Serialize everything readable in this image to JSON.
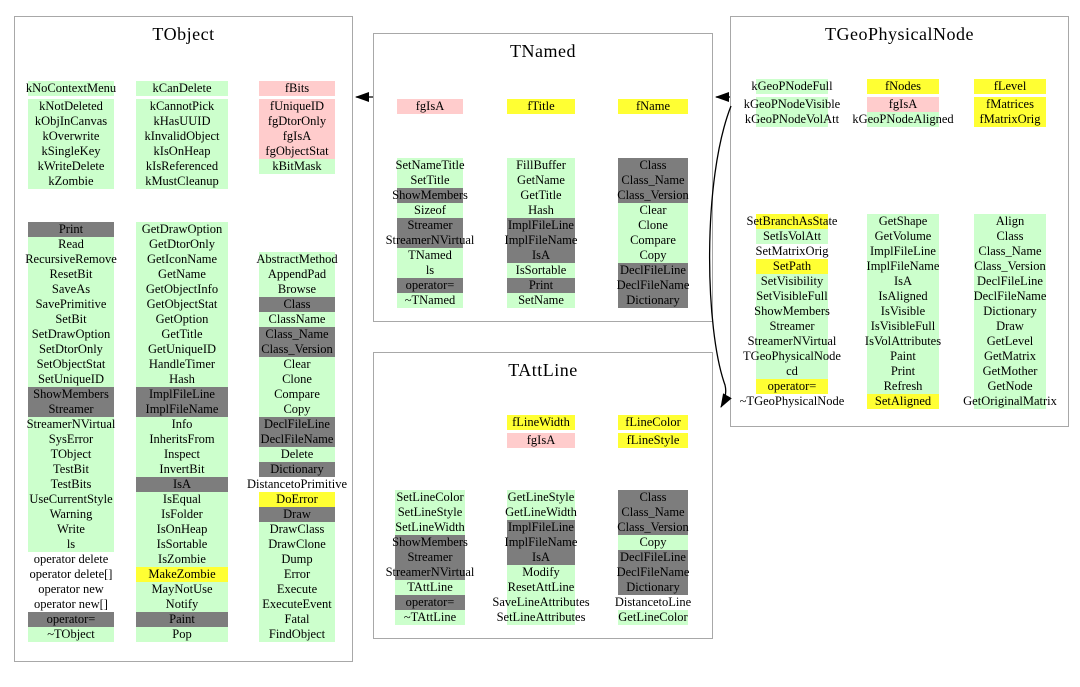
{
  "colors": {
    "green": "#ccffcc",
    "pink": "#ffcccc",
    "yellow": "#ffff33",
    "gray": "#7d7d7d",
    "none": "transparent"
  },
  "arrows": [
    {
      "from": "TNamed",
      "to": "TObject"
    },
    {
      "from": "TGeoPhysicalNode",
      "to": "TNamed"
    },
    {
      "from": "TGeoPhysicalNode",
      "to": "TAttLine"
    }
  ],
  "classes": {
    "tobject": {
      "title": "TObject",
      "members": [
        [
          {
            "t": "kNoContextMenu",
            "c": "green"
          },
          {
            "t": "kNotDeleted",
            "c": "green"
          },
          {
            "t": "kObjInCanvas",
            "c": "green"
          },
          {
            "t": "kOverwrite",
            "c": "green"
          },
          {
            "t": "kSingleKey",
            "c": "green"
          },
          {
            "t": "kWriteDelete",
            "c": "green"
          },
          {
            "t": "kZombie",
            "c": "green"
          }
        ],
        [
          {
            "t": "kCanDelete",
            "c": "green"
          },
          {
            "t": "kCannotPick",
            "c": "green"
          },
          {
            "t": "kHasUUID",
            "c": "green"
          },
          {
            "t": "kInvalidObject",
            "c": "green"
          },
          {
            "t": "kIsOnHeap",
            "c": "green"
          },
          {
            "t": "kIsReferenced",
            "c": "green"
          },
          {
            "t": "kMustCleanup",
            "c": "green"
          }
        ],
        [
          {
            "t": "fBits",
            "c": "pink"
          },
          {
            "t": "fUniqueID",
            "c": "pink"
          },
          {
            "t": "fgDtorOnly",
            "c": "pink"
          },
          {
            "t": "fgIsA",
            "c": "pink"
          },
          {
            "t": "fgObjectStat",
            "c": "pink"
          },
          {
            "t": "kBitMask",
            "c": "green"
          }
        ]
      ],
      "methods": [
        [
          {
            "t": "Print",
            "c": "gray"
          },
          {
            "t": "Read",
            "c": "green"
          },
          {
            "t": "RecursiveRemove",
            "c": "green"
          },
          {
            "t": "ResetBit",
            "c": "green"
          },
          {
            "t": "SaveAs",
            "c": "green"
          },
          {
            "t": "SavePrimitive",
            "c": "green"
          },
          {
            "t": "SetBit",
            "c": "green"
          },
          {
            "t": "SetDrawOption",
            "c": "green"
          },
          {
            "t": "SetDtorOnly",
            "c": "green"
          },
          {
            "t": "SetObjectStat",
            "c": "green"
          },
          {
            "t": "SetUniqueID",
            "c": "green"
          },
          {
            "t": "ShowMembers",
            "c": "gray"
          },
          {
            "t": "Streamer",
            "c": "gray"
          },
          {
            "t": "StreamerNVirtual",
            "c": "green"
          },
          {
            "t": "SysError",
            "c": "green"
          },
          {
            "t": "TObject",
            "c": "green"
          },
          {
            "t": "TestBit",
            "c": "green"
          },
          {
            "t": "TestBits",
            "c": "green"
          },
          {
            "t": "UseCurrentStyle",
            "c": "green"
          },
          {
            "t": "Warning",
            "c": "green"
          },
          {
            "t": "Write",
            "c": "green"
          },
          {
            "t": "ls",
            "c": "green"
          },
          {
            "t": "operator delete",
            "c": "none"
          },
          {
            "t": "operator delete[]",
            "c": "none"
          },
          {
            "t": "operator new",
            "c": "none"
          },
          {
            "t": "operator new[]",
            "c": "none"
          },
          {
            "t": "operator=",
            "c": "gray"
          },
          {
            "t": "~TObject",
            "c": "green"
          }
        ],
        [
          {
            "t": "GetDrawOption",
            "c": "green"
          },
          {
            "t": "GetDtorOnly",
            "c": "green"
          },
          {
            "t": "GetIconName",
            "c": "green"
          },
          {
            "t": "GetName",
            "c": "green"
          },
          {
            "t": "GetObjectInfo",
            "c": "green"
          },
          {
            "t": "GetObjectStat",
            "c": "green"
          },
          {
            "t": "GetOption",
            "c": "green"
          },
          {
            "t": "GetTitle",
            "c": "green"
          },
          {
            "t": "GetUniqueID",
            "c": "green"
          },
          {
            "t": "HandleTimer",
            "c": "green"
          },
          {
            "t": "Hash",
            "c": "green"
          },
          {
            "t": "ImplFileLine",
            "c": "gray"
          },
          {
            "t": "ImplFileName",
            "c": "gray"
          },
          {
            "t": "Info",
            "c": "green"
          },
          {
            "t": "InheritsFrom",
            "c": "green"
          },
          {
            "t": "Inspect",
            "c": "green"
          },
          {
            "t": "InvertBit",
            "c": "green"
          },
          {
            "t": "IsA",
            "c": "gray"
          },
          {
            "t": "IsEqual",
            "c": "green"
          },
          {
            "t": "IsFolder",
            "c": "green"
          },
          {
            "t": "IsOnHeap",
            "c": "green"
          },
          {
            "t": "IsSortable",
            "c": "green"
          },
          {
            "t": "IsZombie",
            "c": "green"
          },
          {
            "t": "MakeZombie",
            "c": "yellow"
          },
          {
            "t": "MayNotUse",
            "c": "green"
          },
          {
            "t": "Notify",
            "c": "green"
          },
          {
            "t": "Paint",
            "c": "gray"
          },
          {
            "t": "Pop",
            "c": "green"
          }
        ],
        [
          {
            "t": "AbstractMethod",
            "c": "green"
          },
          {
            "t": "AppendPad",
            "c": "green"
          },
          {
            "t": "Browse",
            "c": "green"
          },
          {
            "t": "Class",
            "c": "gray"
          },
          {
            "t": "ClassName",
            "c": "green"
          },
          {
            "t": "Class_Name",
            "c": "gray"
          },
          {
            "t": "Class_Version",
            "c": "gray"
          },
          {
            "t": "Clear",
            "c": "green"
          },
          {
            "t": "Clone",
            "c": "green"
          },
          {
            "t": "Compare",
            "c": "green"
          },
          {
            "t": "Copy",
            "c": "green"
          },
          {
            "t": "DeclFileLine",
            "c": "gray"
          },
          {
            "t": "DeclFileName",
            "c": "gray"
          },
          {
            "t": "Delete",
            "c": "green"
          },
          {
            "t": "Dictionary",
            "c": "gray"
          },
          {
            "t": "DistancetoPrimitive",
            "c": "none"
          },
          {
            "t": "DoError",
            "c": "yellow"
          },
          {
            "t": "Draw",
            "c": "gray"
          },
          {
            "t": "DrawClass",
            "c": "green"
          },
          {
            "t": "DrawClone",
            "c": "green"
          },
          {
            "t": "Dump",
            "c": "green"
          },
          {
            "t": "Error",
            "c": "green"
          },
          {
            "t": "Execute",
            "c": "green"
          },
          {
            "t": "ExecuteEvent",
            "c": "green"
          },
          {
            "t": "Fatal",
            "c": "green"
          },
          {
            "t": "FindObject",
            "c": "green"
          }
        ]
      ]
    },
    "tnamed": {
      "title": "TNamed",
      "members": [
        [
          {
            "t": "fgIsA",
            "c": "pink"
          }
        ],
        [
          {
            "t": "fTitle",
            "c": "yellow"
          }
        ],
        [
          {
            "t": "fName",
            "c": "yellow"
          }
        ]
      ],
      "methods": [
        [
          {
            "t": "SetNameTitle",
            "c": "green"
          },
          {
            "t": "SetTitle",
            "c": "green"
          },
          {
            "t": "ShowMembers",
            "c": "gray"
          },
          {
            "t": "Sizeof",
            "c": "green"
          },
          {
            "t": "Streamer",
            "c": "gray"
          },
          {
            "t": "StreamerNVirtual",
            "c": "gray"
          },
          {
            "t": "TNamed",
            "c": "green"
          },
          {
            "t": "ls",
            "c": "green"
          },
          {
            "t": "operator=",
            "c": "gray"
          },
          {
            "t": "~TNamed",
            "c": "green"
          }
        ],
        [
          {
            "t": "FillBuffer",
            "c": "green"
          },
          {
            "t": "GetName",
            "c": "green"
          },
          {
            "t": "GetTitle",
            "c": "green"
          },
          {
            "t": "Hash",
            "c": "green"
          },
          {
            "t": "ImplFileLine",
            "c": "gray"
          },
          {
            "t": "ImplFileName",
            "c": "gray"
          },
          {
            "t": "IsA",
            "c": "gray"
          },
          {
            "t": "IsSortable",
            "c": "green"
          },
          {
            "t": "Print",
            "c": "gray"
          },
          {
            "t": "SetName",
            "c": "green"
          }
        ],
        [
          {
            "t": "Class",
            "c": "gray"
          },
          {
            "t": "Class_Name",
            "c": "gray"
          },
          {
            "t": "Class_Version",
            "c": "gray"
          },
          {
            "t": "Clear",
            "c": "green"
          },
          {
            "t": "Clone",
            "c": "green"
          },
          {
            "t": "Compare",
            "c": "green"
          },
          {
            "t": "Copy",
            "c": "green"
          },
          {
            "t": "DeclFileLine",
            "c": "gray"
          },
          {
            "t": "DeclFileName",
            "c": "gray"
          },
          {
            "t": "Dictionary",
            "c": "gray"
          }
        ]
      ]
    },
    "tattline": {
      "title": "TAttLine",
      "members": [
        [],
        [
          {
            "t": "fLineWidth",
            "c": "yellow"
          },
          {
            "t": "fgIsA",
            "c": "pink"
          }
        ],
        [
          {
            "t": "fLineColor",
            "c": "yellow"
          },
          {
            "t": "fLineStyle",
            "c": "yellow"
          }
        ]
      ],
      "methods": [
        [
          {
            "t": "SetLineColor",
            "c": "green"
          },
          {
            "t": "SetLineStyle",
            "c": "green"
          },
          {
            "t": "SetLineWidth",
            "c": "green"
          },
          {
            "t": "ShowMembers",
            "c": "gray"
          },
          {
            "t": "Streamer",
            "c": "gray"
          },
          {
            "t": "StreamerNVirtual",
            "c": "gray"
          },
          {
            "t": "TAttLine",
            "c": "green"
          },
          {
            "t": "operator=",
            "c": "gray"
          },
          {
            "t": "~TAttLine",
            "c": "green"
          }
        ],
        [
          {
            "t": "GetLineStyle",
            "c": "green"
          },
          {
            "t": "GetLineWidth",
            "c": "green"
          },
          {
            "t": "ImplFileLine",
            "c": "gray"
          },
          {
            "t": "ImplFileName",
            "c": "gray"
          },
          {
            "t": "IsA",
            "c": "gray"
          },
          {
            "t": "Modify",
            "c": "green"
          },
          {
            "t": "ResetAttLine",
            "c": "green"
          },
          {
            "t": "SaveLineAttributes",
            "c": "green"
          },
          {
            "t": "SetLineAttributes",
            "c": "green"
          }
        ],
        [
          {
            "t": "Class",
            "c": "gray"
          },
          {
            "t": "Class_Name",
            "c": "gray"
          },
          {
            "t": "Class_Version",
            "c": "gray"
          },
          {
            "t": "Copy",
            "c": "green"
          },
          {
            "t": "DeclFileLine",
            "c": "gray"
          },
          {
            "t": "DeclFileName",
            "c": "gray"
          },
          {
            "t": "Dictionary",
            "c": "gray"
          },
          {
            "t": "DistancetoLine",
            "c": "none"
          },
          {
            "t": "GetLineColor",
            "c": "green"
          }
        ]
      ]
    },
    "tgeophysicalnode": {
      "title": "TGeoPhysicalNode",
      "members": [
        [
          {
            "t": "kGeoPNodeFull",
            "c": "green"
          },
          {
            "t": "kGeoPNodeVisible",
            "c": "green"
          },
          {
            "t": "kGeoPNodeVolAtt",
            "c": "green"
          }
        ],
        [
          {
            "t": "fNodes",
            "c": "yellow"
          },
          {
            "t": "fgIsA",
            "c": "pink"
          },
          {
            "t": "kGeoPNodeAligned",
            "c": "green"
          }
        ],
        [
          {
            "t": "fLevel",
            "c": "yellow"
          },
          {
            "t": "fMatrices",
            "c": "yellow"
          },
          {
            "t": "fMatrixOrig",
            "c": "yellow"
          }
        ]
      ],
      "methods": [
        [
          {
            "t": "SetBranchAsState",
            "c": "yellow"
          },
          {
            "t": "SetIsVolAtt",
            "c": "green"
          },
          {
            "t": "SetMatrixOrig",
            "c": "none"
          },
          {
            "t": "SetPath",
            "c": "yellow"
          },
          {
            "t": "SetVisibility",
            "c": "green"
          },
          {
            "t": "SetVisibleFull",
            "c": "green"
          },
          {
            "t": "ShowMembers",
            "c": "green"
          },
          {
            "t": "Streamer",
            "c": "green"
          },
          {
            "t": "StreamerNVirtual",
            "c": "green"
          },
          {
            "t": "TGeoPhysicalNode",
            "c": "green"
          },
          {
            "t": "cd",
            "c": "green"
          },
          {
            "t": "operator=",
            "c": "yellow"
          },
          {
            "t": "~TGeoPhysicalNode",
            "c": "none"
          }
        ],
        [
          {
            "t": "GetShape",
            "c": "green"
          },
          {
            "t": "GetVolume",
            "c": "green"
          },
          {
            "t": "ImplFileLine",
            "c": "green"
          },
          {
            "t": "ImplFileName",
            "c": "green"
          },
          {
            "t": "IsA",
            "c": "green"
          },
          {
            "t": "IsAligned",
            "c": "green"
          },
          {
            "t": "IsVisible",
            "c": "green"
          },
          {
            "t": "IsVisibleFull",
            "c": "green"
          },
          {
            "t": "IsVolAttributes",
            "c": "green"
          },
          {
            "t": "Paint",
            "c": "green"
          },
          {
            "t": "Print",
            "c": "green"
          },
          {
            "t": "Refresh",
            "c": "green"
          },
          {
            "t": "SetAligned",
            "c": "yellow"
          }
        ],
        [
          {
            "t": "Align",
            "c": "green"
          },
          {
            "t": "Class",
            "c": "green"
          },
          {
            "t": "Class_Name",
            "c": "green"
          },
          {
            "t": "Class_Version",
            "c": "green"
          },
          {
            "t": "DeclFileLine",
            "c": "green"
          },
          {
            "t": "DeclFileName",
            "c": "green"
          },
          {
            "t": "Dictionary",
            "c": "green"
          },
          {
            "t": "Draw",
            "c": "green"
          },
          {
            "t": "GetLevel",
            "c": "green"
          },
          {
            "t": "GetMatrix",
            "c": "green"
          },
          {
            "t": "GetMother",
            "c": "green"
          },
          {
            "t": "GetNode",
            "c": "green"
          },
          {
            "t": "GetOriginalMatrix",
            "c": "green"
          }
        ]
      ]
    }
  }
}
